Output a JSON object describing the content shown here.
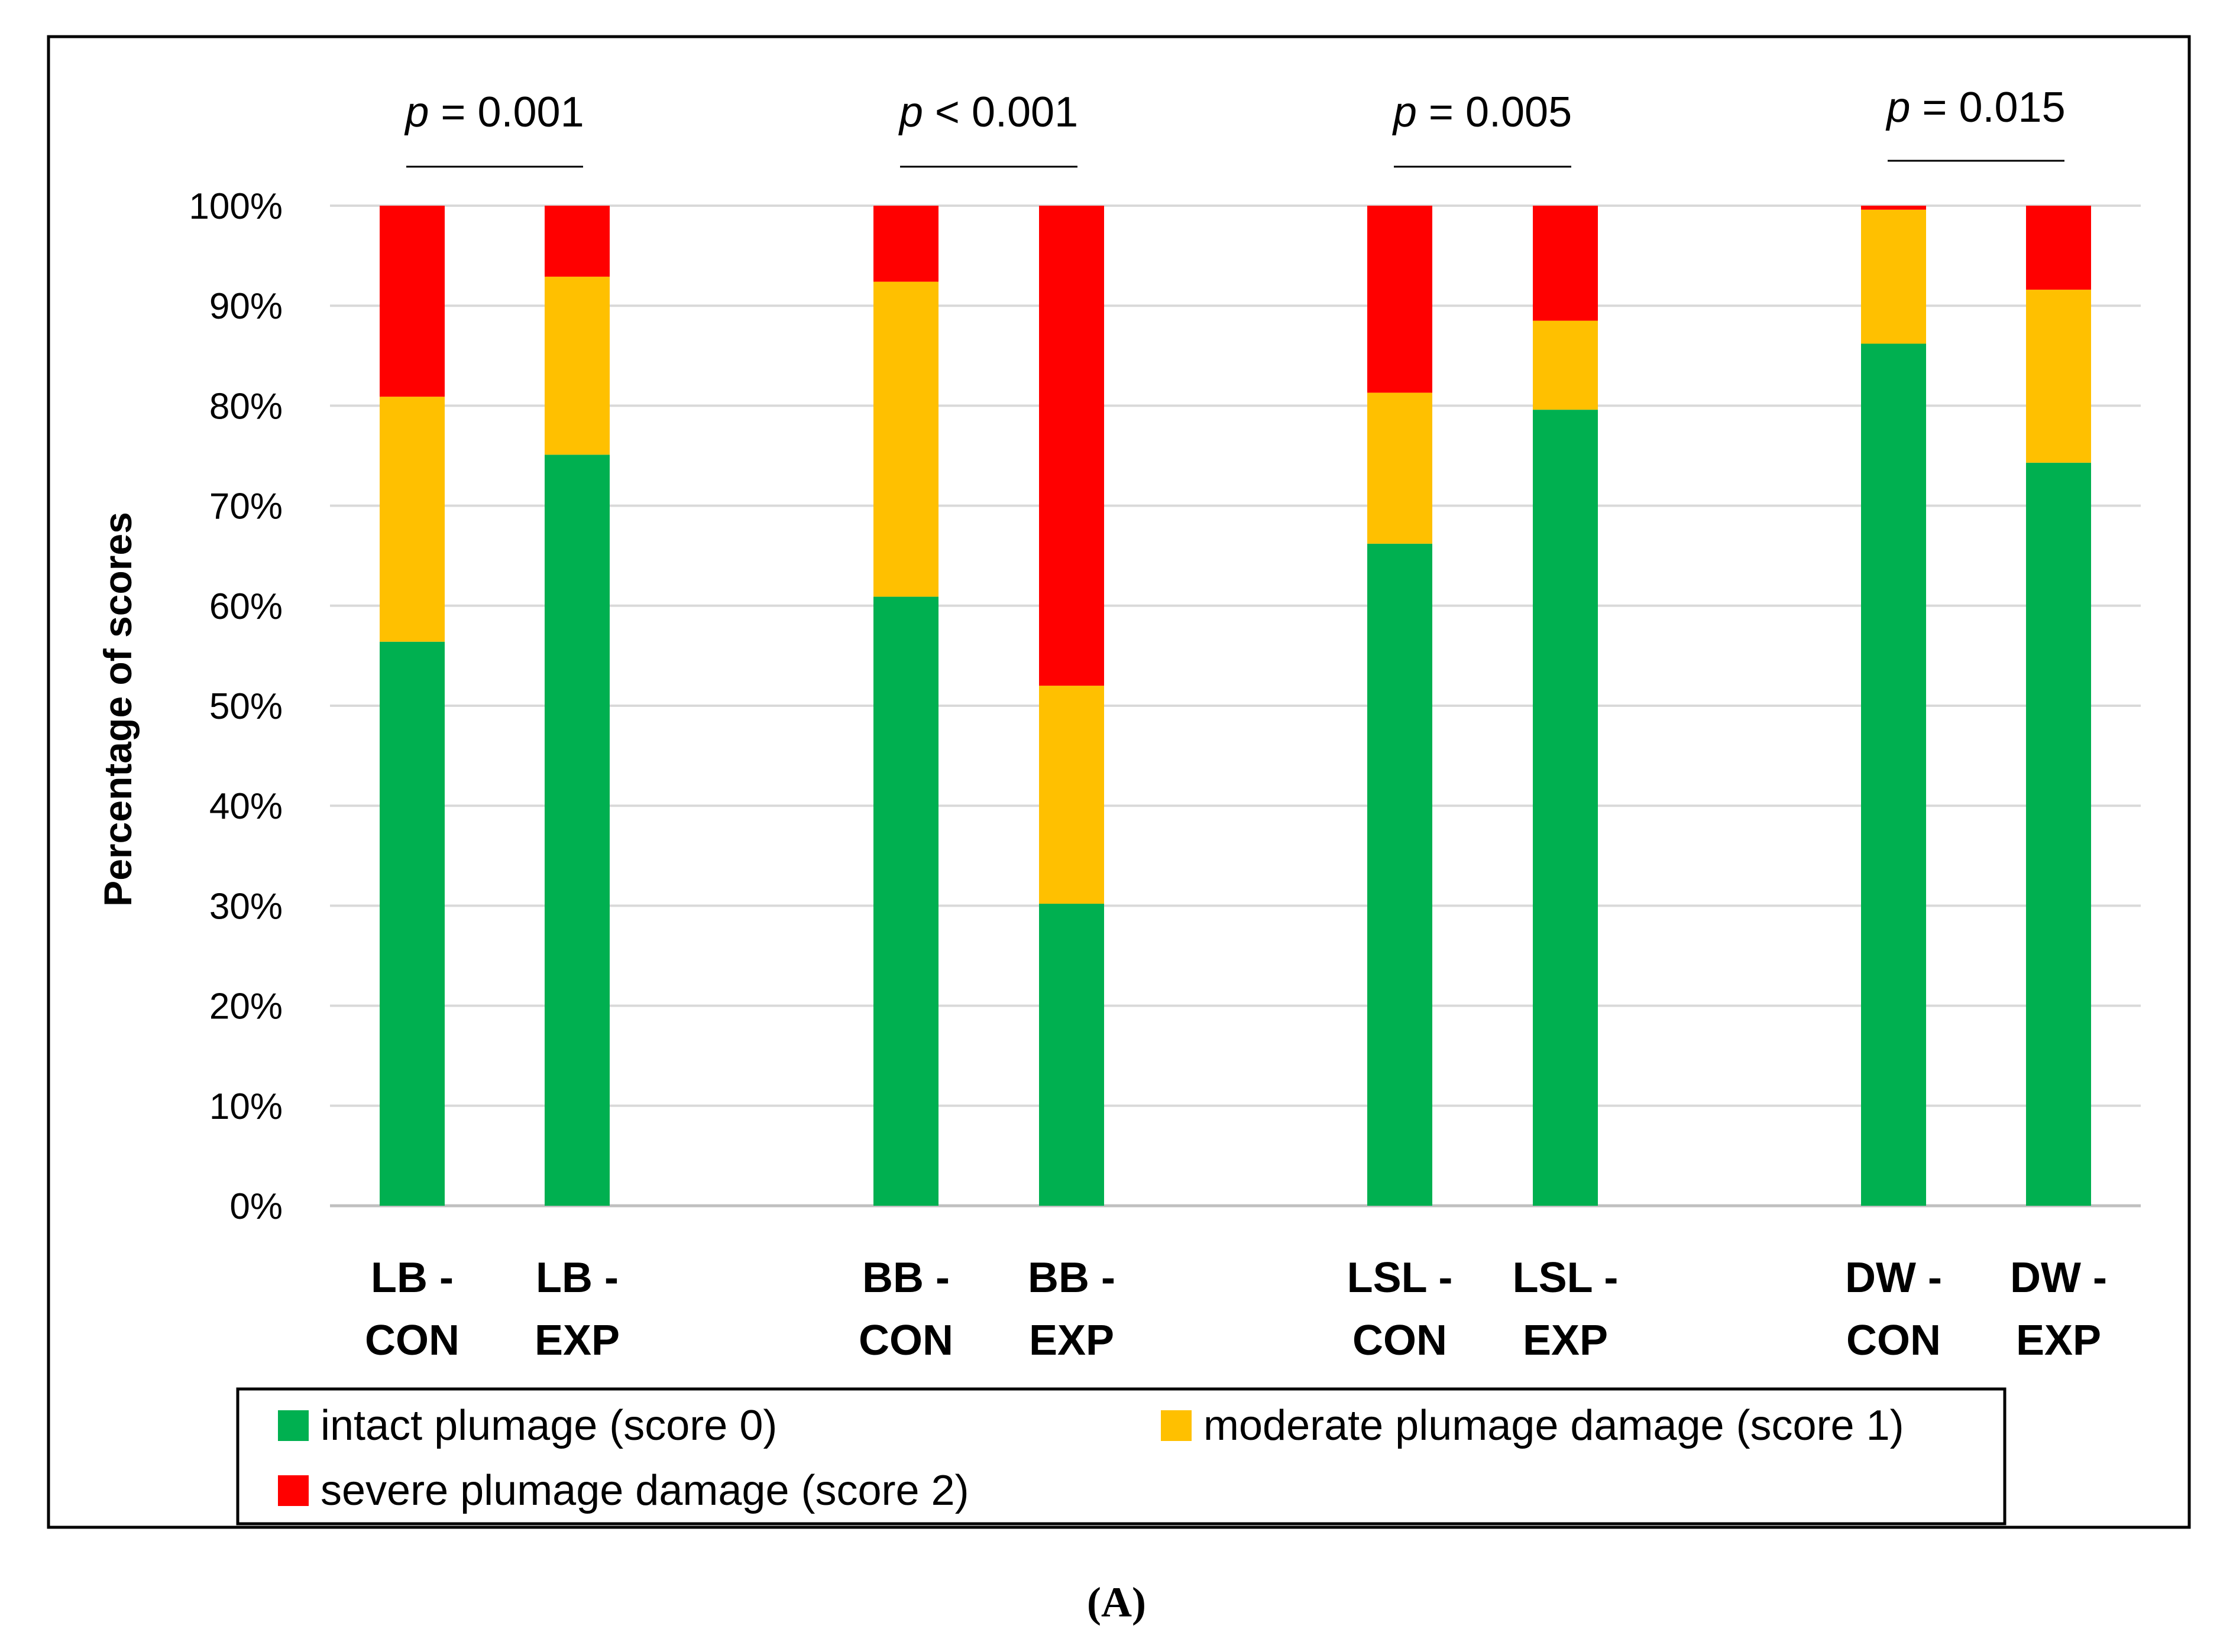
{
  "chart_data": {
    "type": "bar",
    "stacked": true,
    "ylabel": "Percentage of scores",
    "ylim": [
      0,
      100
    ],
    "yticks": [
      "0%",
      "10%",
      "20%",
      "30%",
      "40%",
      "50%",
      "60%",
      "70%",
      "80%",
      "90%",
      "100%"
    ],
    "grid": true,
    "colors": {
      "score0": "#00b050",
      "score1": "#ffc000",
      "score2": "#ff0000"
    },
    "groups": [
      {
        "bars": [
          {
            "label_line1": "LB -",
            "label_line2": "CON"
          },
          {
            "label_line1": "LB -",
            "label_line2": "EXP"
          }
        ],
        "p_symbol": "p",
        "p_text": " = 0.001"
      },
      {
        "bars": [
          {
            "label_line1": "BB -",
            "label_line2": "CON"
          },
          {
            "label_line1": "BB -",
            "label_line2": "EXP"
          }
        ],
        "p_symbol": "p",
        "p_text": " < 0.001"
      },
      {
        "bars": [
          {
            "label_line1": "LSL -",
            "label_line2": "CON"
          },
          {
            "label_line1": "LSL -",
            "label_line2": "EXP"
          }
        ],
        "p_symbol": "p",
        "p_text": " = 0.005"
      },
      {
        "bars": [
          {
            "label_line1": "DW -",
            "label_line2": "CON"
          },
          {
            "label_line1": "DW -",
            "label_line2": "EXP"
          }
        ],
        "p_symbol": "p",
        "p_text": " = 0.015"
      }
    ],
    "series": [
      {
        "key": "score0",
        "name": "intact plumage (score 0)",
        "values": [
          56.4,
          75.1,
          60.9,
          30.2,
          66.2,
          79.6,
          86.2,
          74.3
        ]
      },
      {
        "key": "score1",
        "name": "moderate plumage damage (score 1)",
        "values": [
          24.5,
          17.8,
          31.5,
          21.8,
          15.1,
          8.9,
          13.4,
          17.3
        ]
      },
      {
        "key": "score2",
        "name": "severe plumage damage (score 2)",
        "values": [
          19.1,
          7.1,
          7.6,
          48.0,
          18.7,
          11.5,
          0.4,
          8.4
        ]
      }
    ],
    "legend": "bottom",
    "panel_label": "(A)"
  }
}
